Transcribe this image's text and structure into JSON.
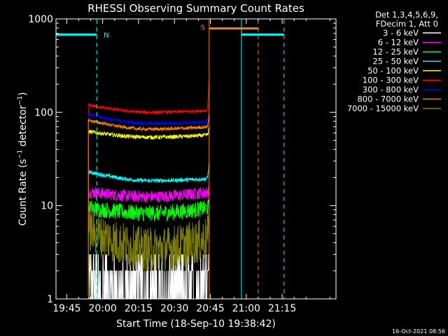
{
  "chart_data": {
    "type": "line",
    "title": "RHESSI Observing Summary Count Rates",
    "xlabel": "Start Time (18-Sep-10 19:38:42)",
    "ylabel_main": "Count Rate (s",
    "ylabel_sup1": "−1",
    "ylabel_mid": " detector",
    "ylabel_sup2": "−1",
    "ylabel_end": ")",
    "y_scale": "log",
    "ylim": [
      1,
      1000
    ],
    "xlim_minutes": [
      -19.5,
      97.5
    ],
    "x_ticks": [
      {
        "label": "19:45",
        "t": -15
      },
      {
        "label": "20:00",
        "t": 0
      },
      {
        "label": "20:15",
        "t": 15
      },
      {
        "label": "20:30",
        "t": 30
      },
      {
        "label": "20:45",
        "t": 45
      },
      {
        "label": "21:00",
        "t": 60
      },
      {
        "label": "21:15",
        "t": 75
      }
    ],
    "y_ticks": [
      {
        "label": "1",
        "v": 1
      },
      {
        "label": "10",
        "v": 10
      },
      {
        "label": "100",
        "v": 100
      },
      {
        "label": "1000",
        "v": 1000
      }
    ],
    "legend_header": [
      "Det 1,3,4,5,6,9,",
      "FDecim 1, Att 0"
    ],
    "observation_window_minutes": [
      -6,
      44.5
    ],
    "series": [
      {
        "name": "3 - 6 keV",
        "color": "#ffffff",
        "start": 2.5,
        "end": 3.0,
        "low": 1.0,
        "noise": 1.6,
        "peak": 3
      },
      {
        "name": "6 - 12 keV",
        "color": "#ff00ff",
        "start": 14,
        "end": 14,
        "low": 12.5,
        "noise": 0.15,
        "peak": 15
      },
      {
        "name": "12 - 25 keV",
        "color": "#00ff00",
        "start": 9.5,
        "end": 9.5,
        "low": 8.3,
        "noise": 0.2,
        "peak": 10
      },
      {
        "name": "25 - 50 keV",
        "color": "#00ffff",
        "start": 23,
        "end": 19.5,
        "low": 18.5,
        "noise": 0.05,
        "peak": 30
      },
      {
        "name": "50 - 100 keV",
        "color": "#ffff00",
        "start": 62,
        "end": 57,
        "low": 54,
        "noise": 0.05,
        "peak": 70
      },
      {
        "name": "100 - 300 keV",
        "color": "#ff0000",
        "start": 120,
        "end": 105,
        "low": 100,
        "noise": 0.04,
        "peak": 240
      },
      {
        "name": "300 - 800 keV",
        "color": "#0000ff",
        "start": 95,
        "end": 80,
        "low": 76,
        "noise": 0.04,
        "peak": 120
      },
      {
        "name": "800 - 7000 keV",
        "color": "#ff8000",
        "start": 82,
        "end": 70,
        "low": 66,
        "noise": 0.04,
        "peak": 100
      },
      {
        "name": "7000 - 15000 keV",
        "color": "#808000",
        "start": 5.5,
        "end": 4.5,
        "low": 3.4,
        "noise": 0.55,
        "peak": 7
      }
    ],
    "annotations": [
      {
        "label": "N",
        "color": "#00ffff",
        "t_start": -19.5,
        "t_end": -2.5,
        "v": 680
      },
      {
        "label": "S",
        "color": "#ff8000",
        "t_start": 44.5,
        "t_end": 65,
        "v": 790
      }
    ],
    "vlines": [
      {
        "t": -19.5,
        "color": "#00ffff",
        "dashed": false
      },
      {
        "t": -2.5,
        "color": "#00ffff",
        "dashed": true
      },
      {
        "t": 44.5,
        "color": "#ff8000",
        "dashed": false
      },
      {
        "t": 58,
        "color": "#00ffff",
        "dashed": false
      },
      {
        "t": 65,
        "color": "#ff8000",
        "dashed": true
      },
      {
        "t": 75.8,
        "color": "#00ffff",
        "dashed": true
      }
    ]
  },
  "timestamp": "16-Oct-2021 08:56"
}
